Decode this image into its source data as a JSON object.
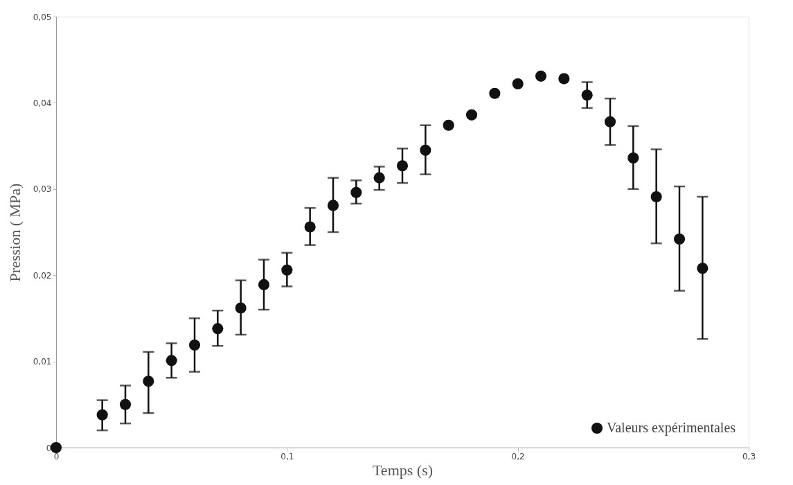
{
  "chart_data": {
    "type": "scatter",
    "xlabel": "Temps (s)",
    "ylabel": "Pression ( MPa)",
    "x": [
      0,
      0.02,
      0.03,
      0.04,
      0.05,
      0.06,
      0.07,
      0.08,
      0.09,
      0.1,
      0.11,
      0.12,
      0.13,
      0.14,
      0.15,
      0.16,
      0.17,
      0.18,
      0.19,
      0.2,
      0.21,
      0.22,
      0.23,
      0.24,
      0.25,
      0.26,
      0.27,
      0.28
    ],
    "series": [
      {
        "name": "Valeurs expérimentales",
        "color": "#111111",
        "values": [
          0,
          0.0038,
          0.005,
          0.0077,
          0.0101,
          0.0119,
          0.0138,
          0.0162,
          0.0189,
          0.0206,
          0.0256,
          0.0281,
          0.0296,
          0.0313,
          0.0327,
          0.0345,
          0.0374,
          0.0386,
          0.0411,
          0.0422,
          0.0431,
          0.0428,
          0.0409,
          0.0378,
          0.0336,
          0.0291,
          0.0242,
          0.0208
        ],
        "errors": [
          null,
          [
            0.002,
            0.0055
          ],
          [
            0.0028,
            0.0072
          ],
          [
            0.004,
            0.0111
          ],
          [
            0.0081,
            0.0121
          ],
          [
            0.0088,
            0.015
          ],
          [
            0.0118,
            0.0159
          ],
          [
            0.0131,
            0.0194
          ],
          [
            0.016,
            0.0218
          ],
          [
            0.0187,
            0.0226
          ],
          [
            0.0235,
            0.0278
          ],
          [
            0.025,
            0.0313
          ],
          [
            0.0283,
            0.031
          ],
          [
            0.0299,
            0.0326
          ],
          [
            0.0307,
            0.0347
          ],
          [
            0.0317,
            0.0374
          ],
          null,
          null,
          null,
          null,
          null,
          null,
          [
            0.0394,
            0.0424
          ],
          [
            0.0351,
            0.0405
          ],
          [
            0.03,
            0.0373
          ],
          [
            0.0237,
            0.0346
          ],
          [
            0.0182,
            0.0303
          ],
          [
            0.0126,
            0.0291
          ]
        ]
      }
    ],
    "xlim": [
      0,
      0.3
    ],
    "ylim": [
      0,
      0.05
    ],
    "xticks": [
      0,
      {
        "value": 0.1,
        "label": "0,1"
      },
      {
        "value": 0.2,
        "label": "0,2"
      },
      {
        "value": 0.3,
        "label": "0,3"
      }
    ],
    "yticks": [
      0,
      {
        "value": 0.01,
        "label": "0,01"
      },
      {
        "value": 0.02,
        "label": "0,02"
      },
      {
        "value": 0.03,
        "label": "0,03"
      },
      {
        "value": 0.04,
        "label": "0,04"
      },
      {
        "value": 0.05,
        "label": "0,05"
      }
    ],
    "grid": false,
    "legend": "bottom right",
    "marker": "circle"
  }
}
